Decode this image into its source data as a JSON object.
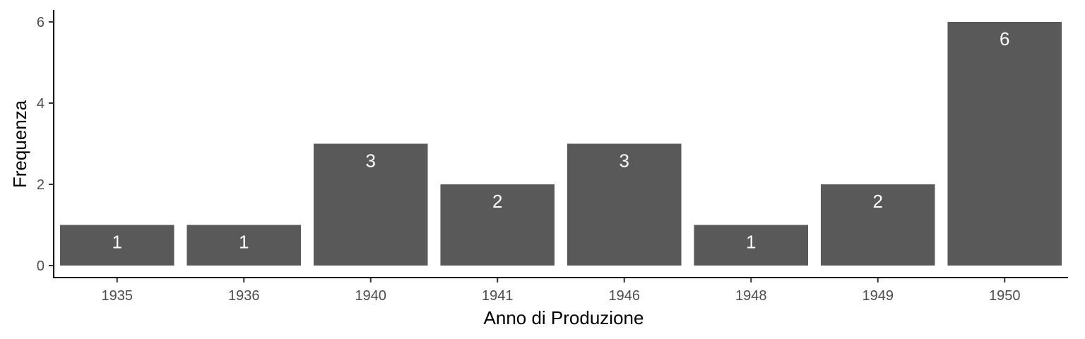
{
  "chart_data": {
    "type": "bar",
    "categories": [
      "1935",
      "1936",
      "1940",
      "1941",
      "1946",
      "1948",
      "1949",
      "1950"
    ],
    "values": [
      1,
      1,
      3,
      2,
      3,
      1,
      2,
      6
    ],
    "data_labels": [
      "1",
      "1",
      "3",
      "2",
      "3",
      "1",
      "2",
      "6"
    ],
    "title": "",
    "xlabel": "Anno di Produzione",
    "ylabel": "Frequenza",
    "ylim": [
      0,
      6
    ],
    "yticks": [
      0,
      2,
      4,
      6
    ],
    "ytick_labels": [
      "0",
      "2",
      "4",
      "6"
    ],
    "grid": false,
    "legend": "none",
    "colors": {
      "bar": "#595959",
      "label": "#ffffff",
      "axis": "#000000",
      "tick_text": "#4d4d4d"
    }
  }
}
